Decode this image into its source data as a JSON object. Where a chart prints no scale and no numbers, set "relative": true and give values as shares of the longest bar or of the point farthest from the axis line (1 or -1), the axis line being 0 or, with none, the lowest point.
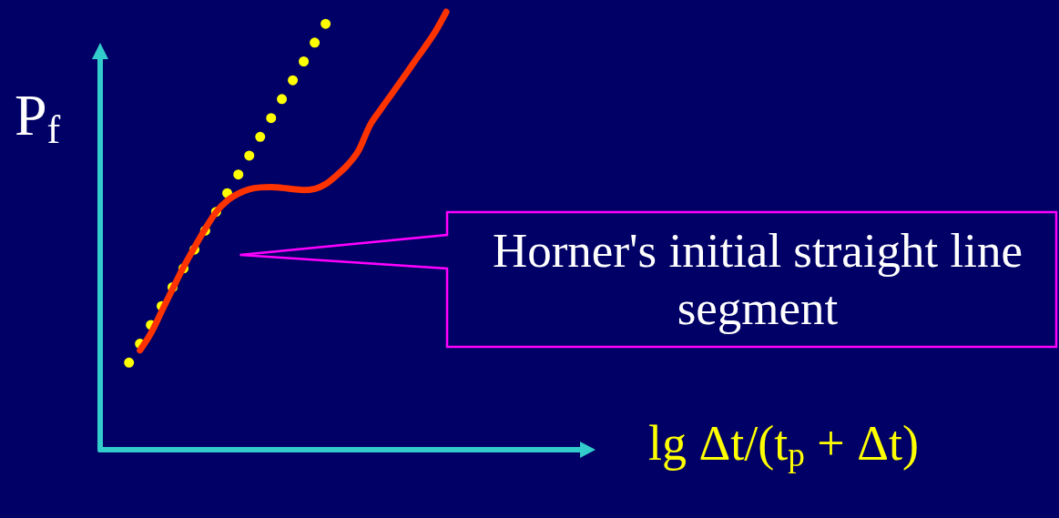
{
  "chart_data": {
    "type": "line",
    "relative": true,
    "xlabel": "lg Δt/(t$_{p}$ + Δt)",
    "ylabel": "P$_{f}$",
    "annotations": [
      "Horner's initial straight line segment"
    ],
    "categories": [
      null,
      null,
      null,
      null,
      null,
      null,
      null,
      null,
      null,
      null,
      null,
      null,
      null,
      null,
      null,
      null,
      null,
      null,
      null,
      null,
      null,
      null,
      null,
      null,
      null,
      null,
      null,
      null,
      null,
      null,
      null,
      null,
      null,
      null,
      null,
      null,
      null,
      null,
      null,
      null,
      null
    ],
    "series": [
      {
        "color": "#ffff00",
        "line_style": "dotted",
        "values": [
          0.199,
          0.242,
          0.285,
          0.329,
          0.372,
          0.415,
          0.458,
          0.502,
          0.545,
          0.587,
          0.629,
          0.672,
          0.715,
          0.758,
          0.802,
          0.845,
          0.888,
          0.931,
          0.974,
          null,
          null,
          null,
          null,
          null,
          null,
          null,
          null,
          null,
          null,
          null,
          null,
          null,
          null,
          null,
          null,
          null,
          null,
          null,
          null,
          null,
          null
        ]
      },
      {
        "color": "#ff3300",
        "line_style": "solid",
        "values": [
          null,
          0.227,
          0.266,
          0.317,
          0.368,
          0.418,
          0.463,
          0.506,
          0.544,
          0.569,
          0.585,
          0.595,
          0.599,
          0.6,
          0.598,
          0.595,
          0.593,
          0.596,
          0.607,
          0.627,
          0.651,
          0.684,
          0.74,
          0.777,
          0.812,
          0.847,
          0.883,
          0.918,
          0.955,
          1,
          null,
          null,
          null,
          null,
          null,
          null,
          null,
          null,
          null,
          null,
          null
        ]
      }
    ]
  }
}
